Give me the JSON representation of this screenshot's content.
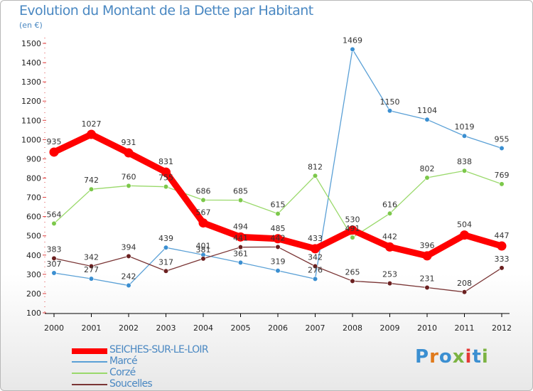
{
  "title": "Evolution du Montant de la Dette par Habitant",
  "subtitle": "(en €)",
  "logo": {
    "text": "Proxiti",
    "colors": [
      "#3b8fd1",
      "#e07a1c",
      "#3b8fd1",
      "#7cb342",
      "#e53935",
      "#3b8fd1",
      "#7cb342"
    ]
  },
  "chart_data": {
    "type": "line",
    "title": "Evolution du Montant de la Dette par Habitant",
    "ylabel": "(en €)",
    "xlabel": "",
    "x": [
      "2000",
      "2001",
      "2002",
      "2003",
      "2004",
      "2005",
      "2006",
      "2007",
      "2008",
      "2009",
      "2010",
      "2011",
      "2012"
    ],
    "ylim": [
      100,
      1500
    ],
    "yticks": [
      "100",
      "200",
      "300",
      "400",
      "500",
      "600",
      "700",
      "800",
      "900",
      "1000",
      "1100",
      "1200",
      "1300",
      "1400",
      "1500"
    ],
    "grid": false,
    "legend_position": "bottom-left",
    "series": [
      {
        "name": "SEICHES-SUR-LE-LOIR",
        "color": "#ff0000",
        "values": [
          935,
          1027,
          931,
          831,
          567,
          494,
          485,
          433,
          530,
          442,
          396,
          504,
          447
        ],
        "labels": [
          "935",
          "1027",
          "931",
          "831",
          "567",
          "494",
          "485",
          "433",
          "530",
          "442",
          "396",
          "504",
          "447"
        ]
      },
      {
        "name": "Marcé",
        "color": "#5aa0d6",
        "point_color": "#3b8fd1",
        "values": [
          307,
          277,
          242,
          439,
          401,
          361,
          319,
          276,
          1469,
          1150,
          1104,
          1019,
          955
        ],
        "labels": [
          "307",
          "277",
          "242",
          "439",
          "401",
          "361",
          "319",
          "276",
          "1469",
          "1150",
          "1104",
          "1019",
          "955"
        ]
      },
      {
        "name": "Corzé",
        "color": "#9ad96b",
        "point_color": "#7cc84a",
        "values": [
          564,
          742,
          760,
          755,
          686,
          685,
          615,
          812,
          491,
          616,
          802,
          838,
          769
        ],
        "labels": [
          "564",
          "742",
          "760",
          "755",
          "686",
          "685",
          "615",
          "812",
          "491",
          "616",
          "802",
          "838",
          "769"
        ]
      },
      {
        "name": "Soucelles",
        "color": "#7a3535",
        "point_color": "#6b2020",
        "values": [
          383,
          342,
          394,
          317,
          381,
          441,
          442,
          342,
          265,
          253,
          231,
          208,
          333
        ],
        "labels": [
          "383",
          "342",
          "394",
          "317",
          "381",
          "441",
          "442",
          "342",
          "265",
          "253",
          "231",
          "208",
          "333"
        ]
      }
    ]
  }
}
